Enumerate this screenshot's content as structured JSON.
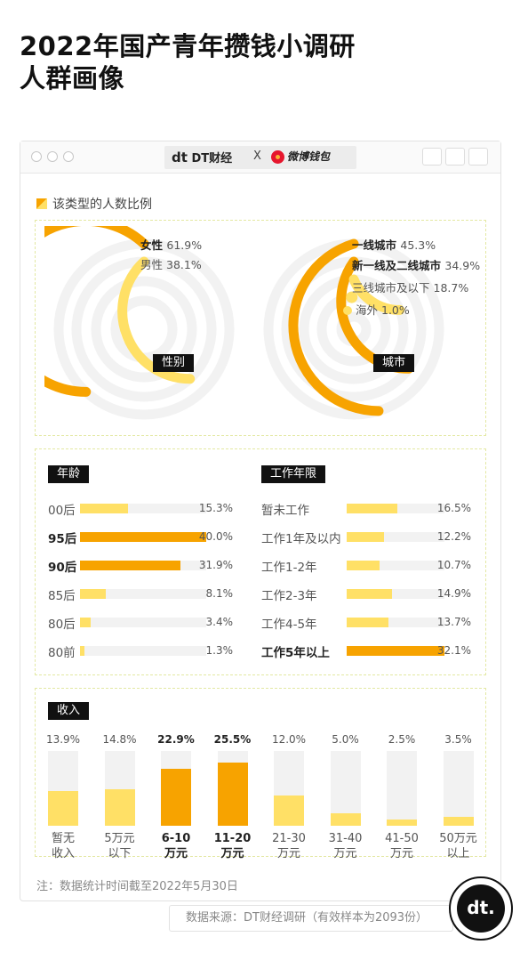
{
  "title": {
    "line1": "2022年国产青年攒钱小调研",
    "line2": "人群画像"
  },
  "window": {
    "brand_dt_logo": "dt",
    "brand_dt_name": "DT财经",
    "brand_x": "X",
    "brand_weibo": "微博钱包",
    "icons": [
      "close-dot-icon",
      "minimize-dot-icon",
      "maximize-dot-icon"
    ]
  },
  "legend": {
    "label": "该类型的人数比例"
  },
  "colors": {
    "primary": "#f7a300",
    "secondary": "#ffe066",
    "track": "#f2f2f2"
  },
  "chart_data": [
    {
      "type": "radial-bar",
      "label": "性别",
      "categories": [
        "女性",
        "男性"
      ],
      "values": [
        61.9,
        38.1
      ],
      "unit": "%"
    },
    {
      "type": "radial-bar",
      "label": "城市",
      "categories": [
        "一线城市",
        "新一线及二线城市",
        "三线城市及以下",
        "海外"
      ],
      "values": [
        45.3,
        34.9,
        18.7,
        1.0
      ],
      "unit": "%"
    },
    {
      "type": "bar",
      "orientation": "horizontal",
      "label": "年龄",
      "categories": [
        "00后",
        "95后",
        "90后",
        "85后",
        "80后",
        "80前"
      ],
      "values": [
        15.3,
        40.0,
        31.9,
        8.1,
        3.4,
        1.3
      ],
      "unit": "%",
      "xlim": [
        0,
        40
      ]
    },
    {
      "type": "bar",
      "orientation": "horizontal",
      "label": "工作年限",
      "categories": [
        "暂未工作",
        "工作1年及以内",
        "工作1-2年",
        "工作2-3年",
        "工作4-5年",
        "工作5年以上"
      ],
      "values": [
        16.5,
        12.2,
        10.7,
        14.9,
        13.7,
        32.1
      ],
      "unit": "%",
      "xlim": [
        0,
        32.1
      ]
    },
    {
      "type": "bar",
      "orientation": "vertical",
      "label": "收入",
      "categories": [
        "暂无收入",
        "5万元以下",
        "6-10万元",
        "11-20万元",
        "21-30万元",
        "31-40万元",
        "41-50万元",
        "50万元以上"
      ],
      "values": [
        13.9,
        14.8,
        22.9,
        25.5,
        12.0,
        5.0,
        2.5,
        3.5
      ],
      "unit": "%",
      "ylim": [
        0,
        30
      ]
    }
  ],
  "gender": {
    "title": "性别",
    "items": [
      {
        "name": "女性",
        "value": "61.9%"
      },
      {
        "name": "男性",
        "value": "38.1%"
      }
    ]
  },
  "city": {
    "title": "城市",
    "items": [
      {
        "name": "一线城市",
        "value": "45.3%"
      },
      {
        "name": "新一线及二线城市",
        "value": "34.9%"
      },
      {
        "name": "三线城市及以下",
        "value": "18.7%"
      },
      {
        "name": "海外",
        "value": "1.0%"
      }
    ]
  },
  "age": {
    "title": "年龄",
    "items": [
      {
        "name": "00后",
        "value": "15.3%"
      },
      {
        "name": "95后",
        "value": "40.0%"
      },
      {
        "name": "90后",
        "value": "31.9%"
      },
      {
        "name": "85后",
        "value": "8.1%"
      },
      {
        "name": "80后",
        "value": "3.4%"
      },
      {
        "name": "80前",
        "value": "1.3%"
      }
    ]
  },
  "work": {
    "title": "工作年限",
    "items": [
      {
        "name": "暂未工作",
        "value": "16.5%"
      },
      {
        "name": "工作1年及以内",
        "value": "12.2%"
      },
      {
        "name": "工作1-2年",
        "value": "10.7%"
      },
      {
        "name": "工作2-3年",
        "value": "14.9%"
      },
      {
        "name": "工作4-5年",
        "value": "13.7%"
      },
      {
        "name": "工作5年以上",
        "value": "32.1%"
      }
    ]
  },
  "income": {
    "title": "收入",
    "items": [
      {
        "line1": "暂无",
        "line2": "收入",
        "value": "13.9%"
      },
      {
        "line1": "5万元",
        "line2": "以下",
        "value": "14.8%"
      },
      {
        "line1": "6-10",
        "line2": "万元",
        "value": "22.9%"
      },
      {
        "line1": "11-20",
        "line2": "万元",
        "value": "25.5%"
      },
      {
        "line1": "21-30",
        "line2": "万元",
        "value": "12.0%"
      },
      {
        "line1": "31-40",
        "line2": "万元",
        "value": "5.0%"
      },
      {
        "line1": "41-50",
        "line2": "万元",
        "value": "2.5%"
      },
      {
        "line1": "50万元",
        "line2": "以上",
        "value": "3.5%"
      }
    ]
  },
  "footer": {
    "note": "注：数据统计时间截至2022年5月30日",
    "source": "数据来源：DT财经调研（有效样本为2093份）",
    "badge": "dt."
  }
}
